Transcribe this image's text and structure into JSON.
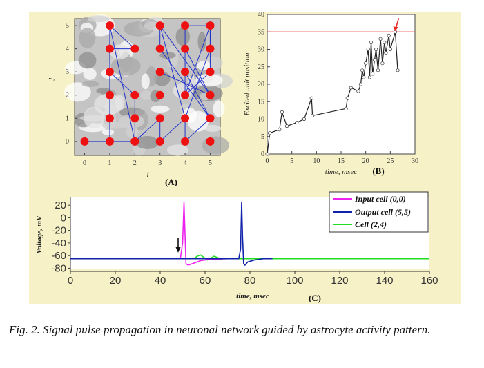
{
  "caption": "Fig. 2. Signal pulse propagation in neuronal network guided by astrocyte activity pattern.",
  "colors": {
    "panel_background": "#f6f1c6",
    "neuron": "#ee1111",
    "connection": "#2233cc",
    "input_cell": "#ee22ee",
    "output_cell": "#1122aa",
    "cell_24": "#22dd22",
    "threshold_line": "#ee4444"
  },
  "chart_data": [
    {
      "id": "A",
      "type": "scatter",
      "panel_label": "(A)",
      "xlabel": "i",
      "ylabel": "j",
      "xlim": [
        -0.4,
        5.4
      ],
      "ylim": [
        -0.6,
        5.3
      ],
      "x_ticks": [
        "0",
        "1",
        "2",
        "3",
        "4",
        "5"
      ],
      "y_ticks": [
        "0",
        "1",
        "2",
        "3",
        "4",
        "5"
      ],
      "background": "grey astrocyte activity pattern",
      "neurons": [
        [
          0,
          0
        ],
        [
          1,
          0
        ],
        [
          2,
          0
        ],
        [
          3,
          0
        ],
        [
          4,
          0
        ],
        [
          5,
          0
        ],
        [
          1,
          1
        ],
        [
          2,
          1
        ],
        [
          3,
          1
        ],
        [
          4,
          1
        ],
        [
          5,
          1
        ],
        [
          1,
          2
        ],
        [
          2,
          2
        ],
        [
          3,
          2
        ],
        [
          4,
          2
        ],
        [
          5,
          2
        ],
        [
          1,
          3
        ],
        [
          3,
          3
        ],
        [
          4,
          3
        ],
        [
          5,
          3
        ],
        [
          1,
          4
        ],
        [
          2,
          4
        ],
        [
          3,
          4
        ],
        [
          4,
          4
        ],
        [
          5,
          4
        ],
        [
          1,
          5
        ],
        [
          3,
          5
        ],
        [
          4,
          5
        ],
        [
          5,
          5
        ]
      ],
      "connections": [
        [
          [
            0,
            0
          ],
          [
            1,
            0
          ]
        ],
        [
          [
            1,
            0
          ],
          [
            2,
            0
          ]
        ],
        [
          [
            1,
            0
          ],
          [
            1,
            1
          ]
        ],
        [
          [
            1,
            1
          ],
          [
            1,
            2
          ]
        ],
        [
          [
            1,
            2
          ],
          [
            1,
            3
          ]
        ],
        [
          [
            1,
            3
          ],
          [
            1,
            4
          ]
        ],
        [
          [
            1,
            4
          ],
          [
            1,
            5
          ]
        ],
        [
          [
            1,
            4
          ],
          [
            2,
            4
          ]
        ],
        [
          [
            1,
            5
          ],
          [
            2,
            4
          ]
        ],
        [
          [
            1,
            3
          ],
          [
            2,
            2
          ]
        ],
        [
          [
            2,
            2
          ],
          [
            2,
            1
          ]
        ],
        [
          [
            2,
            1
          ],
          [
            2,
            0
          ]
        ],
        [
          [
            1,
            5
          ],
          [
            2,
            0
          ]
        ],
        [
          [
            2,
            0
          ],
          [
            3,
            1
          ]
        ],
        [
          [
            3,
            1
          ],
          [
            3,
            0
          ]
        ],
        [
          [
            3,
            0
          ],
          [
            4,
            1
          ]
        ],
        [
          [
            4,
            1
          ],
          [
            4,
            0
          ]
        ],
        [
          [
            4,
            0
          ],
          [
            5,
            1
          ]
        ],
        [
          [
            4,
            1
          ],
          [
            3,
            5
          ]
        ],
        [
          [
            3,
            5
          ],
          [
            5,
            2
          ]
        ],
        [
          [
            3,
            4
          ],
          [
            5,
            1
          ]
        ],
        [
          [
            3,
            3
          ],
          [
            5,
            2
          ]
        ],
        [
          [
            4,
            5
          ],
          [
            4,
            4
          ]
        ],
        [
          [
            4,
            4
          ],
          [
            4,
            3
          ]
        ],
        [
          [
            4,
            3
          ],
          [
            4,
            2
          ]
        ],
        [
          [
            4,
            2
          ],
          [
            5,
            3
          ]
        ],
        [
          [
            5,
            3
          ],
          [
            5,
            4
          ]
        ],
        [
          [
            5,
            4
          ],
          [
            5,
            5
          ]
        ],
        [
          [
            4,
            5
          ],
          [
            5,
            5
          ]
        ],
        [
          [
            5,
            5
          ],
          [
            4,
            2
          ]
        ],
        [
          [
            5,
            4
          ],
          [
            4,
            1
          ]
        ],
        [
          [
            4,
            4
          ],
          [
            5,
            2
          ]
        ],
        [
          [
            3,
            5
          ],
          [
            3,
            4
          ]
        ],
        [
          [
            4,
            3
          ],
          [
            5,
            1
          ]
        ],
        [
          [
            5,
            5
          ],
          [
            5,
            4
          ]
        ]
      ]
    },
    {
      "id": "B",
      "type": "line",
      "panel_label": "(B)",
      "xlabel": "time, msec",
      "ylabel": "Excited unit position",
      "xlim": [
        0,
        30
      ],
      "ylim": [
        0,
        40
      ],
      "x_ticks": [
        "0",
        "5",
        "10",
        "15",
        "20",
        "25",
        "30"
      ],
      "y_ticks": [
        "0",
        "5",
        "10",
        "15",
        "20",
        "25",
        "30",
        "35",
        "40"
      ],
      "threshold_y": 35,
      "arrow_at": [
        26,
        35
      ],
      "x": [
        0,
        0.5,
        2.5,
        3,
        4,
        6,
        7.5,
        9,
        9.2,
        16,
        16.3,
        17,
        18.5,
        19,
        19.3,
        19.6,
        20,
        20.5,
        20.8,
        21.1,
        21.4,
        21.8,
        22.1,
        22.5,
        23,
        23.4,
        23.8,
        24.1,
        24.7,
        25,
        26,
        26.5
      ],
      "y": [
        0,
        6,
        7,
        12,
        8,
        9,
        10,
        16,
        11,
        13,
        16,
        19,
        18,
        20,
        24,
        22,
        26,
        30,
        22,
        32,
        23,
        27,
        30,
        24,
        33,
        26,
        32,
        29,
        34,
        30,
        35,
        24
      ]
    },
    {
      "id": "C",
      "type": "line",
      "panel_label": "(C)",
      "xlabel": "time, msec",
      "ylabel": "Voltage, mV",
      "xlim": [
        0,
        160
      ],
      "ylim": [
        -85,
        30
      ],
      "x_ticks": [
        "0",
        "20",
        "40",
        "60",
        "80",
        "100",
        "120",
        "140",
        "160"
      ],
      "y_ticks": [
        "20",
        "0",
        "-20",
        "-40",
        "-60",
        "-80"
      ],
      "arrow_at_x": 48,
      "series": [
        {
          "name": "Input cell (0,0)",
          "x": [
            0,
            48,
            49,
            50,
            50.6,
            51,
            51.5,
            52.5,
            55,
            58,
            62,
            70
          ],
          "y": [
            -65,
            -65,
            -64,
            -40,
            25,
            -20,
            -73,
            -75,
            -72,
            -68,
            -66,
            -65
          ]
        },
        {
          "name": "Output cell (5,5)",
          "x": [
            0,
            75,
            75.8,
            76.3,
            76.7,
            77.2,
            77.8,
            79,
            82,
            86,
            90
          ],
          "y": [
            -65,
            -65,
            -50,
            25,
            -30,
            -73,
            -75,
            -70,
            -67,
            -65,
            -65
          ]
        },
        {
          "name": "Cell (2,4)",
          "x": [
            0,
            55,
            56.5,
            58,
            59.5,
            61,
            62.5,
            64,
            65.5,
            67,
            68.5,
            70,
            160
          ],
          "y": [
            -65,
            -65,
            -61,
            -59,
            -63,
            -67,
            -64,
            -61,
            -63,
            -66,
            -64,
            -65,
            -65
          ]
        }
      ]
    }
  ]
}
